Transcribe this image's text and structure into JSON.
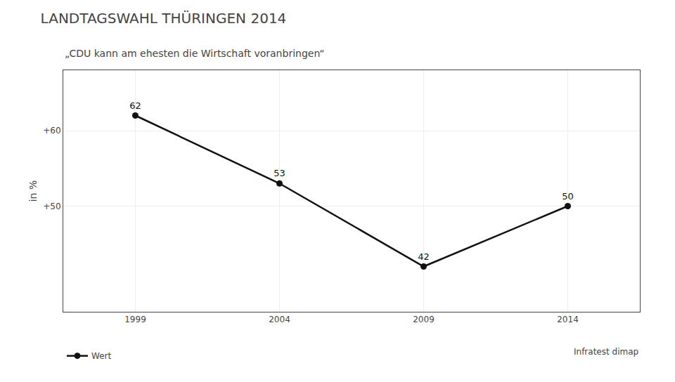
{
  "chart_data": {
    "type": "line",
    "title": "LANDTAGSWAHL THÜRINGEN 2014",
    "subtitle": "„CDU kann am ehesten die Wirtschaft voranbringen“",
    "ylabel": "in %",
    "source": "Infratest dimap",
    "categories": [
      "1999",
      "2004",
      "2009",
      "2014"
    ],
    "series": [
      {
        "name": "Wert",
        "color": "#111111",
        "values": [
          62,
          53,
          42,
          50
        ]
      }
    ],
    "marker": "circle",
    "ylim": [
      36,
      68
    ],
    "yticks": [
      {
        "value": 50,
        "label": "+50"
      },
      {
        "value": 60,
        "label": "+60"
      }
    ],
    "grid": true,
    "legend": "bottom left",
    "data_labels": true
  }
}
